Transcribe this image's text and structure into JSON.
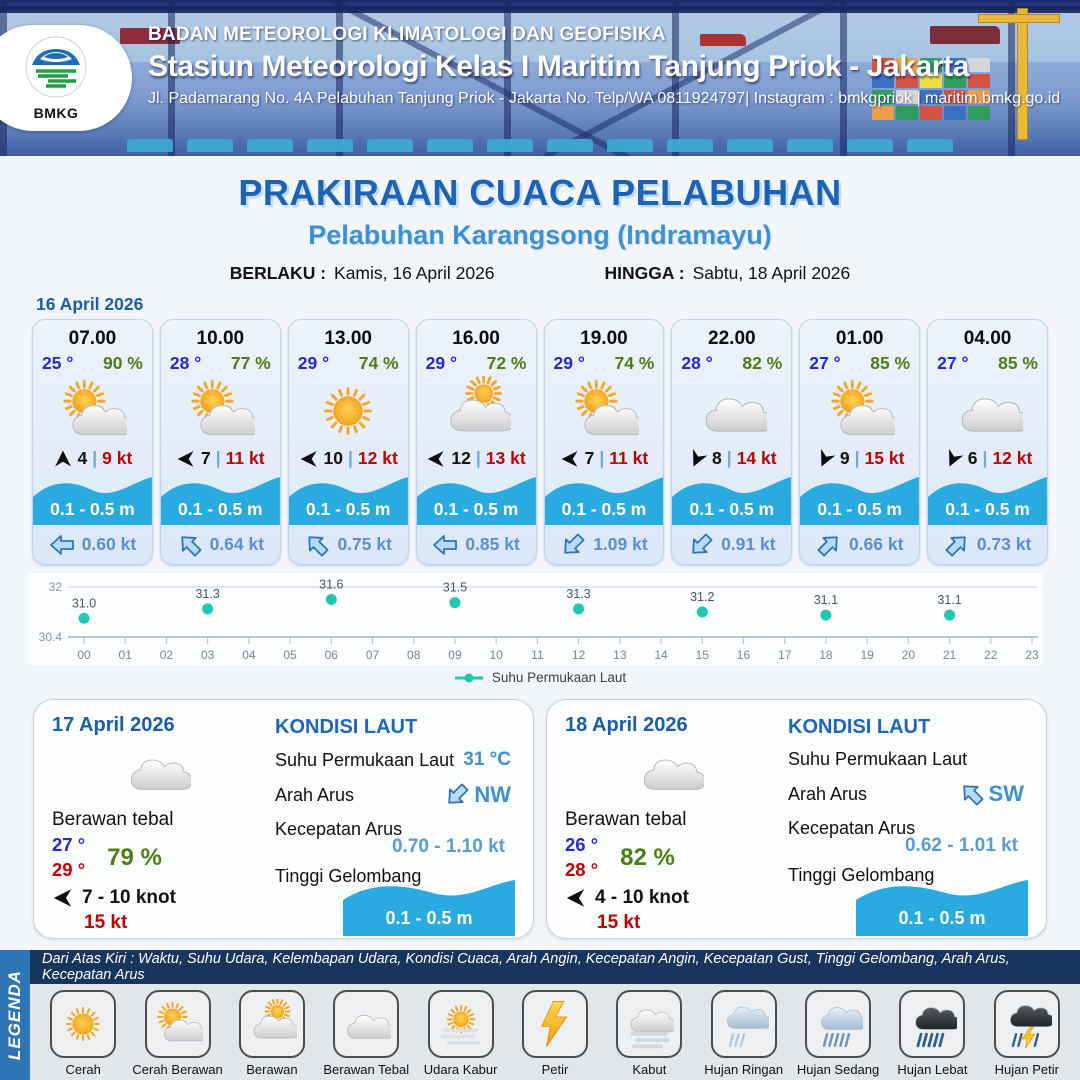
{
  "colors": {
    "temp-blue": "#2328d8",
    "humidity-green": "#4e7d15",
    "gust-red": "#c00000",
    "wave-cyan": "#29abe2",
    "current-blue": "#5b8dd9",
    "heading-blue": "#1a5dab",
    "subtitle-blue": "#3d8fd6",
    "chart-teal": "#1fc8b4",
    "legend-navy": "#17365d",
    "legend-strip": "#2e75b6"
  },
  "header": {
    "org": "BADAN METEOROLOGI KLIMATOLOGI DAN GEOFISIKA",
    "station": "Stasiun Meteorologi Kelas I Maritim Tanjung Priok - Jakarta",
    "address": "Jl. Padamarang No. 4A Pelabuhan Tanjung Priok - Jakarta No. Telp/WA 0811924797| Instagram : bmkgpriok | maritim.bmkg.go.id",
    "logo_text": "BMKG"
  },
  "title": {
    "main": "PRAKIRAAN CUACA PELABUHAN",
    "sub": "Pelabuhan Karangsong (Indramayu)",
    "berlaku_label": "BERLAKU :",
    "berlaku_value": "Kamis, 16 April 2026",
    "hingga_label": "HINGGA :",
    "hingga_value": "Sabtu, 18 April 2026",
    "date_label": "16 April 2026"
  },
  "cards": [
    {
      "time": "07.00",
      "temp": "25 °",
      "hum": "90 %",
      "icon": "cerah-berawan",
      "wind": "4",
      "sep": "|",
      "gust": "9 kt",
      "wave": "0.1 - 0.5 m",
      "current": "0.60 kt",
      "wind_rot": 0,
      "cur_rot": 0
    },
    {
      "time": "10.00",
      "temp": "28 °",
      "hum": "77 %",
      "icon": "cerah-berawan",
      "wind": "7",
      "sep": "|",
      "gust": "11 kt",
      "wave": "0.1 - 0.5 m",
      "current": "0.64 kt",
      "wind_rot": -90,
      "cur_rot": 45
    },
    {
      "time": "13.00",
      "temp": "29 °",
      "hum": "74 %",
      "icon": "cerah",
      "wind": "10",
      "sep": "|",
      "gust": "12 kt",
      "wave": "0.1 - 0.5 m",
      "current": "0.75 kt",
      "wind_rot": -90,
      "cur_rot": 45
    },
    {
      "time": "16.00",
      "temp": "29 °",
      "hum": "72 %",
      "icon": "berawan",
      "wind": "12",
      "sep": "|",
      "gust": "13 kt",
      "wave": "0.1 - 0.5 m",
      "current": "0.85 kt",
      "wind_rot": -90,
      "cur_rot": 0
    },
    {
      "time": "19.00",
      "temp": "29 °",
      "hum": "74 %",
      "icon": "cerah-berawan",
      "wind": "7",
      "sep": "|",
      "gust": "11 kt",
      "wave": "0.1 - 0.5 m",
      "current": "1.09 kt",
      "wind_rot": -90,
      "cur_rot": -45
    },
    {
      "time": "22.00",
      "temp": "28 °",
      "hum": "82 %",
      "icon": "berawan-tebal",
      "wind": "8",
      "sep": "|",
      "gust": "14 kt",
      "wave": "0.1 - 0.5 m",
      "current": "0.91 kt",
      "wind_rot": 205,
      "cur_rot": -45
    },
    {
      "time": "01.00",
      "temp": "27 °",
      "hum": "85 %",
      "icon": "cerah-berawan",
      "wind": "9",
      "sep": "|",
      "gust": "15 kt",
      "wave": "0.1 - 0.5 m",
      "current": "0.66 kt",
      "wind_rot": 205,
      "cur_rot": 135
    },
    {
      "time": "04.00",
      "temp": "27 °",
      "hum": "85 %",
      "icon": "berawan-tebal",
      "wind": "6",
      "sep": "|",
      "gust": "12 kt",
      "wave": "0.1 - 0.5 m",
      "current": "0.73 kt",
      "wind_rot": 205,
      "cur_rot": 135
    }
  ],
  "chart_data": {
    "type": "scatter",
    "legend": "Suhu Permukaan Laut",
    "x_ticks": [
      "00",
      "01",
      "02",
      "03",
      "04",
      "05",
      "06",
      "07",
      "08",
      "09",
      "10",
      "11",
      "12",
      "13",
      "14",
      "15",
      "16",
      "17",
      "18",
      "19",
      "20",
      "21",
      "22",
      "23"
    ],
    "points": [
      {
        "x": 0,
        "y": 31.0
      },
      {
        "x": 3,
        "y": 31.3
      },
      {
        "x": 6,
        "y": 31.6
      },
      {
        "x": 9,
        "y": 31.5
      },
      {
        "x": 12,
        "y": 31.3
      },
      {
        "x": 15,
        "y": 31.2
      },
      {
        "x": 18,
        "y": 31.1
      },
      {
        "x": 21,
        "y": 31.1
      }
    ],
    "ylim": [
      30.4,
      32
    ],
    "y_tick_labels": [
      "32",
      "30.4"
    ],
    "grid": true,
    "legend_position": "bottom",
    "point_color": "#1fc8b4"
  },
  "days": [
    {
      "date": "17 April 2026",
      "icon": "berawan-tebal",
      "cond": "Berawan tebal",
      "tmin": "27 °",
      "tmax": "29 °",
      "hum": "79 %",
      "wind": "7 - 10 knot",
      "gust": "15 kt",
      "sea": {
        "title": "KONDISI LAUT",
        "sst_label": "Suhu Permukaan Laut",
        "sst": "31 °C",
        "arah_label": "Arah Arus",
        "arah": "NW",
        "arah_rot": -45,
        "kec_label": "Kecepatan Arus",
        "kec": "0.70 - 1.10 kt",
        "gel_label": "Tinggi Gelombang",
        "gel": "0.1 - 0.5 m"
      }
    },
    {
      "date": "18 April 2026",
      "icon": "berawan-tebal",
      "cond": "Berawan tebal",
      "tmin": "26 °",
      "tmax": "28 °",
      "hum": "82 %",
      "wind": "4 - 10 knot",
      "gust": "15 kt",
      "sea": {
        "title": "KONDISI LAUT",
        "sst_label": "Suhu Permukaan Laut",
        "sst": "",
        "arah_label": "Arah Arus",
        "arah": "SW",
        "arah_rot": 45,
        "kec_label": "Kecepatan Arus",
        "kec": "0.62 - 1.01 kt",
        "gel_label": "Tinggi Gelombang",
        "gel": "0.1 - 0.5 m"
      }
    }
  ],
  "legend": {
    "strip": "LEGENDA",
    "note": "Dari Atas Kiri : Waktu, Suhu Udara, Kelembapan Udara, Kondisi Cuaca, Arah Angin, Kecepatan Angin, Kecepatan Gust, Tinggi Gelombang, Arah Arus, Kecepatan Arus",
    "items": [
      {
        "label": "Cerah",
        "icon": "cerah"
      },
      {
        "label": "Cerah Berawan",
        "icon": "cerah-berawan"
      },
      {
        "label": "Berawan",
        "icon": "berawan"
      },
      {
        "label": "Berawan Tebal",
        "icon": "berawan-tebal"
      },
      {
        "label": "Udara Kabur",
        "icon": "udara-kabur"
      },
      {
        "label": "Petir",
        "icon": "petir"
      },
      {
        "label": "Kabut",
        "icon": "kabut"
      },
      {
        "label": "Hujan Ringan",
        "icon": "hujan-ringan"
      },
      {
        "label": "Hujan Sedang",
        "icon": "hujan-sedang"
      },
      {
        "label": "Hujan Lebat",
        "icon": "hujan-lebat"
      },
      {
        "label": "Hujan Petir",
        "icon": "hujan-petir"
      }
    ]
  }
}
